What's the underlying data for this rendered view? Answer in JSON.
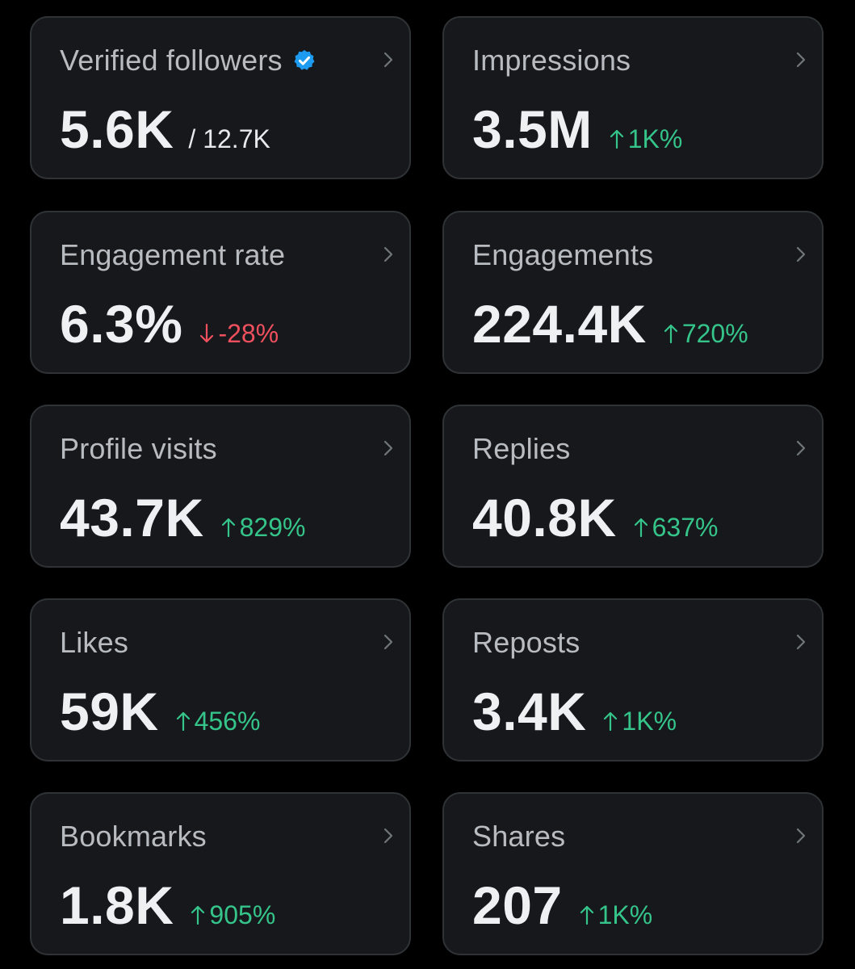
{
  "colors": {
    "card_background": "#16181c",
    "card_border": "#2f3336",
    "label": "#b8bcc1",
    "value": "#eef0f2",
    "up": "#35c48a",
    "down": "#f0505e",
    "verified_badge": "#1d9bf0"
  },
  "metrics": [
    {
      "label": "Verified followers",
      "value": "5.6K",
      "total": "/ 12.7K",
      "verified_icon": "verified-badge-icon"
    },
    {
      "label": "Impressions",
      "value": "3.5M",
      "change": "1K%",
      "direction": "up"
    },
    {
      "label": "Engagement rate",
      "value": "6.3%",
      "change": "-28%",
      "direction": "down"
    },
    {
      "label": "Engagements",
      "value": "224.4K",
      "change": "720%",
      "direction": "up"
    },
    {
      "label": "Profile visits",
      "value": "43.7K",
      "change": "829%",
      "direction": "up"
    },
    {
      "label": "Replies",
      "value": "40.8K",
      "change": "637%",
      "direction": "up"
    },
    {
      "label": "Likes",
      "value": "59K",
      "change": "456%",
      "direction": "up"
    },
    {
      "label": "Reposts",
      "value": "3.4K",
      "change": "1K%",
      "direction": "up"
    },
    {
      "label": "Bookmarks",
      "value": "1.8K",
      "change": "905%",
      "direction": "up"
    },
    {
      "label": "Shares",
      "value": "207",
      "change": "1K%",
      "direction": "up"
    }
  ]
}
